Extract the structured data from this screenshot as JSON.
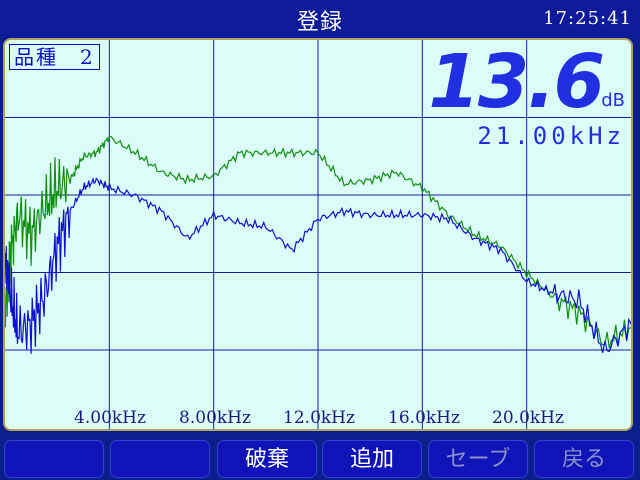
{
  "header": {
    "title": "登録",
    "time": "17:25:41"
  },
  "panel": {
    "product_label": "品種　2",
    "level_value": "13.6",
    "level_unit": "dB",
    "frequency": "21.00kHz"
  },
  "chart_data": {
    "type": "line",
    "xlabel": "",
    "ylabel": "",
    "xlim": [
      0,
      24
    ],
    "ylim": [
      0,
      10
    ],
    "x_ticks": [
      "4.00kHz",
      "8.00kHz",
      "12.0kHz",
      "16.0kHz",
      "20.0kHz"
    ],
    "x_tick_values": [
      4,
      8,
      12,
      16,
      20
    ],
    "grid": true,
    "series": [
      {
        "color": "#109010",
        "x": [
          0,
          0.2,
          0.5,
          1,
          1.5,
          2,
          2.5,
          3,
          3.5,
          4,
          5,
          6,
          7,
          8,
          9,
          10,
          11,
          12,
          13,
          14,
          15,
          16,
          17,
          18,
          19,
          20,
          21,
          22,
          23,
          24
        ],
        "y": [
          7,
          5.5,
          4.5,
          5,
          4.3,
          3.8,
          3.6,
          3.0,
          2.9,
          2.5,
          2.9,
          3.4,
          3.6,
          3.5,
          2.9,
          2.9,
          2.9,
          2.9,
          3.7,
          3.6,
          3.4,
          3.8,
          4.5,
          5.0,
          5.3,
          6.0,
          6.6,
          7.0,
          7.8,
          7.4
        ]
      },
      {
        "color": "#1010d0",
        "x": [
          0,
          0.2,
          0.5,
          1,
          1.5,
          2,
          2.5,
          3,
          3.5,
          4,
          5,
          6,
          7,
          8,
          9,
          10,
          11,
          12,
          13,
          14,
          15,
          16,
          17,
          18,
          19,
          20,
          21,
          22,
          23,
          24
        ],
        "y": [
          5.5,
          6.5,
          7.5,
          7.3,
          6.6,
          5.3,
          4.4,
          3.8,
          3.6,
          3.8,
          4.0,
          4.4,
          5.1,
          4.5,
          4.7,
          4.8,
          5.4,
          4.6,
          4.4,
          4.5,
          4.5,
          4.5,
          4.6,
          5.1,
          5.4,
          6.2,
          6.5,
          6.7,
          8.0,
          7.3
        ]
      }
    ]
  },
  "softkeys": [
    {
      "label": "",
      "enabled": true
    },
    {
      "label": "",
      "enabled": true
    },
    {
      "label": "破棄",
      "enabled": true
    },
    {
      "label": "追加",
      "enabled": true
    },
    {
      "label": "セーブ",
      "enabled": false
    },
    {
      "label": "戻る",
      "enabled": false
    }
  ]
}
